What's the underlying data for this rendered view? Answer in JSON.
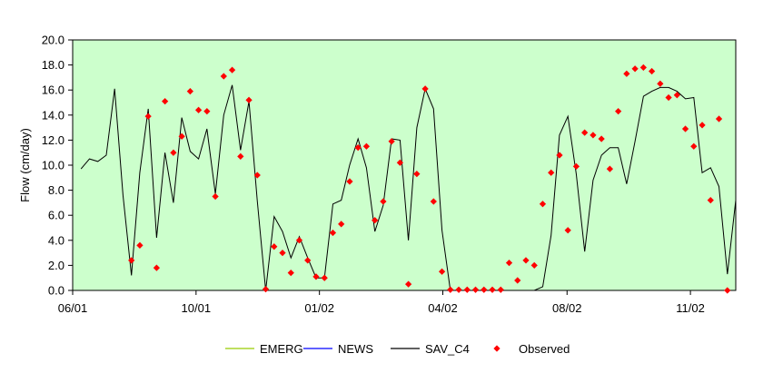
{
  "chart_data": {
    "type": "line",
    "title": "",
    "xlabel": "",
    "ylabel": "Flow (cm/day)",
    "ylim": [
      0,
      20
    ],
    "yticks": [
      "0.0",
      "2.0",
      "4.0",
      "6.0",
      "8.0",
      "10.0",
      "12.0",
      "14.0",
      "16.0",
      "18.0",
      "20.0"
    ],
    "xlim": [
      0,
      79
    ],
    "xticks": [
      {
        "label": "06/01",
        "x": 0
      },
      {
        "label": "10/01",
        "x": 14.7
      },
      {
        "label": "01/02",
        "x": 29.4
      },
      {
        "label": "04/02",
        "x": 44.1
      },
      {
        "label": "08/02",
        "x": 58.9
      },
      {
        "label": "11/02",
        "x": 73.6
      }
    ],
    "grid": false,
    "legend_position": "bottom",
    "colors": {
      "plot_background": "#ccffcc",
      "emerg": "#99cc00",
      "news": "#0000ff",
      "sav_c4": "#000000",
      "observed": "#ff0000"
    },
    "series": [
      {
        "name": "EMERG",
        "values": []
      },
      {
        "name": "NEWS",
        "values": []
      },
      {
        "name": "SAV_C4",
        "x": [
          1,
          2,
          3,
          4,
          5,
          6,
          7,
          8,
          9,
          10,
          11,
          12,
          13,
          14,
          15,
          16,
          17,
          18,
          19,
          20,
          21,
          22,
          23,
          24,
          25,
          26,
          27,
          28,
          29,
          30,
          31,
          32,
          33,
          34,
          35,
          36,
          37,
          38,
          39,
          40,
          41,
          42,
          43,
          44,
          45,
          46,
          47,
          48,
          49,
          50,
          51,
          52,
          53,
          54,
          55,
          56,
          57,
          58,
          59,
          60,
          61,
          62,
          63,
          64,
          65,
          66,
          67,
          68,
          69,
          70,
          71,
          72,
          73,
          74,
          75,
          76,
          77,
          78,
          79
        ],
        "values": [
          9.7,
          10.5,
          10.3,
          10.8,
          16.1,
          7.6,
          1.2,
          9.4,
          14.5,
          4.2,
          11.0,
          7.0,
          13.8,
          11.1,
          10.5,
          12.9,
          7.7,
          14.0,
          16.4,
          11.2,
          15.1,
          7.1,
          0.0,
          5.9,
          4.7,
          2.6,
          4.3,
          2.6,
          1.0,
          1.0,
          6.9,
          7.2,
          10.0,
          12.1,
          9.8,
          4.7,
          6.8,
          12.1,
          12.0,
          4.0,
          13.0,
          16.1,
          14.5,
          4.8,
          0.0,
          0.0,
          0.0,
          0.0,
          0.0,
          0.0,
          0.0,
          0.0,
          0.0,
          0.0,
          0.0,
          0.3,
          4.4,
          12.4,
          13.9,
          9.3,
          3.1,
          8.8,
          10.8,
          11.4,
          11.4,
          8.5,
          11.9,
          15.5,
          15.9,
          16.2,
          16.2,
          15.9,
          15.3,
          15.4,
          9.4,
          9.8,
          8.3,
          1.3,
          7.2
        ]
      },
      {
        "name": "Observed",
        "x": [
          7,
          8,
          9,
          10,
          11,
          12,
          13,
          14,
          15,
          16,
          17,
          18,
          19,
          20,
          21,
          22,
          23,
          24,
          25,
          26,
          27,
          28,
          29,
          30,
          31,
          32,
          33,
          34,
          35,
          36,
          37,
          38,
          39,
          40,
          41,
          42,
          43,
          44,
          45,
          46,
          47,
          48,
          49,
          50,
          51,
          52,
          53,
          54,
          55,
          56,
          57,
          58,
          59,
          60,
          61,
          62,
          63,
          64,
          65,
          66,
          67,
          68,
          69,
          70,
          71,
          72,
          73,
          74,
          75,
          76,
          77,
          78,
          79
        ],
        "values": [
          2.4,
          3.6,
          13.9,
          1.8,
          15.1,
          11.0,
          12.3,
          15.9,
          14.4,
          14.3,
          7.5,
          17.1,
          17.6,
          10.7,
          15.2,
          9.2,
          0.1,
          3.5,
          3.0,
          1.4,
          4.0,
          2.4,
          1.1,
          1.0,
          4.6,
          5.3,
          8.7,
          11.4,
          11.5,
          5.6,
          7.1,
          11.9,
          10.2,
          0.5,
          9.3,
          16.1,
          7.1,
          1.5,
          0.05,
          0.05,
          0.05,
          0.05,
          0.05,
          0.05,
          0.05,
          2.2,
          0.8,
          2.4,
          2.0,
          6.9,
          9.4,
          10.8,
          4.8,
          9.9,
          12.6,
          12.4,
          12.1,
          9.7,
          14.3,
          17.3,
          17.7,
          17.8,
          17.5,
          16.5,
          15.4,
          15.6,
          12.9,
          11.5,
          13.2,
          7.2,
          13.7,
          0,
          0
        ]
      }
    ]
  }
}
